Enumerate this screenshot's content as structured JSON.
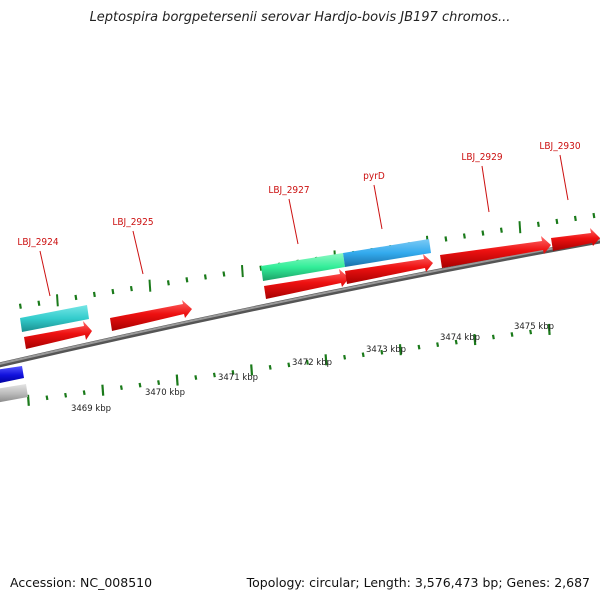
{
  "title": "Leptospira borgpetersenii serovar Hardjo-bovis JB197 chromos...",
  "footer": {
    "accession": "Accession: NC_008510",
    "topology": "Topology: circular; Length: 3,576,473 bp; Genes: 2,687"
  },
  "scale_labels": [
    "3469 kbp",
    "3470 kbp",
    "3471 kbp",
    "3472 kbp",
    "3473 kbp",
    "3474 kbp",
    "3475 kbp"
  ],
  "gene_labels": [
    "LBJ_2924",
    "LBJ_2925",
    "LBJ_2927",
    "pyrD",
    "LBJ_2929",
    "LBJ_2930"
  ],
  "colors": {
    "backbone": "#7a7a7a",
    "tick": "#1a7a1a",
    "cds": "#ee1111",
    "label": "#cc1111",
    "cyan_feature": "#33cccc",
    "green_feature": "#33ee99",
    "skyblue_feature": "#33aaee",
    "blue_feature": "#1111dd",
    "grey_feature": "#bbbbbb"
  }
}
